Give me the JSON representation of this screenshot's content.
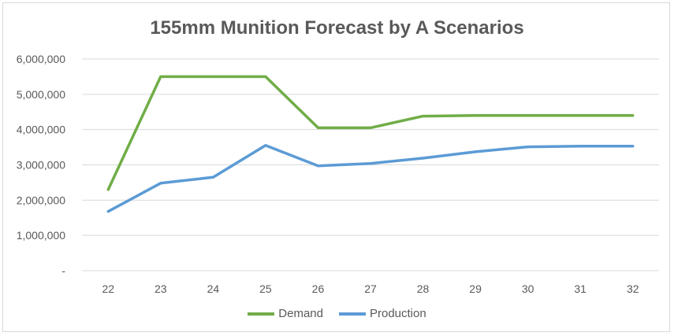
{
  "chart_data": {
    "type": "line",
    "title": "155mm Munition Forecast by A Scenarios",
    "categories": [
      "22",
      "23",
      "24",
      "25",
      "26",
      "27",
      "28",
      "29",
      "30",
      "31",
      "32"
    ],
    "series": [
      {
        "name": "Demand",
        "color": "#70ad47",
        "values": [
          2300000,
          5500000,
          5500000,
          5500000,
          4050000,
          4050000,
          4380000,
          4400000,
          4400000,
          4400000,
          4400000
        ]
      },
      {
        "name": "Production",
        "color": "#5b9bd5",
        "values": [
          1680000,
          2480000,
          2650000,
          3550000,
          2970000,
          3040000,
          3190000,
          3370000,
          3510000,
          3530000,
          3530000
        ]
      }
    ],
    "ylim": [
      0,
      6000000
    ],
    "yticks": [
      0,
      1000000,
      2000000,
      3000000,
      4000000,
      5000000,
      6000000
    ],
    "ytick_labels": [
      "-",
      "1,000,000",
      "2,000,000",
      "3,000,000",
      "4,000,000",
      "5,000,000",
      "6,000,000"
    ],
    "xlabel": "",
    "ylabel": "",
    "grid": true,
    "legend_position": "bottom",
    "gridline_color": "#d9d9d9"
  }
}
